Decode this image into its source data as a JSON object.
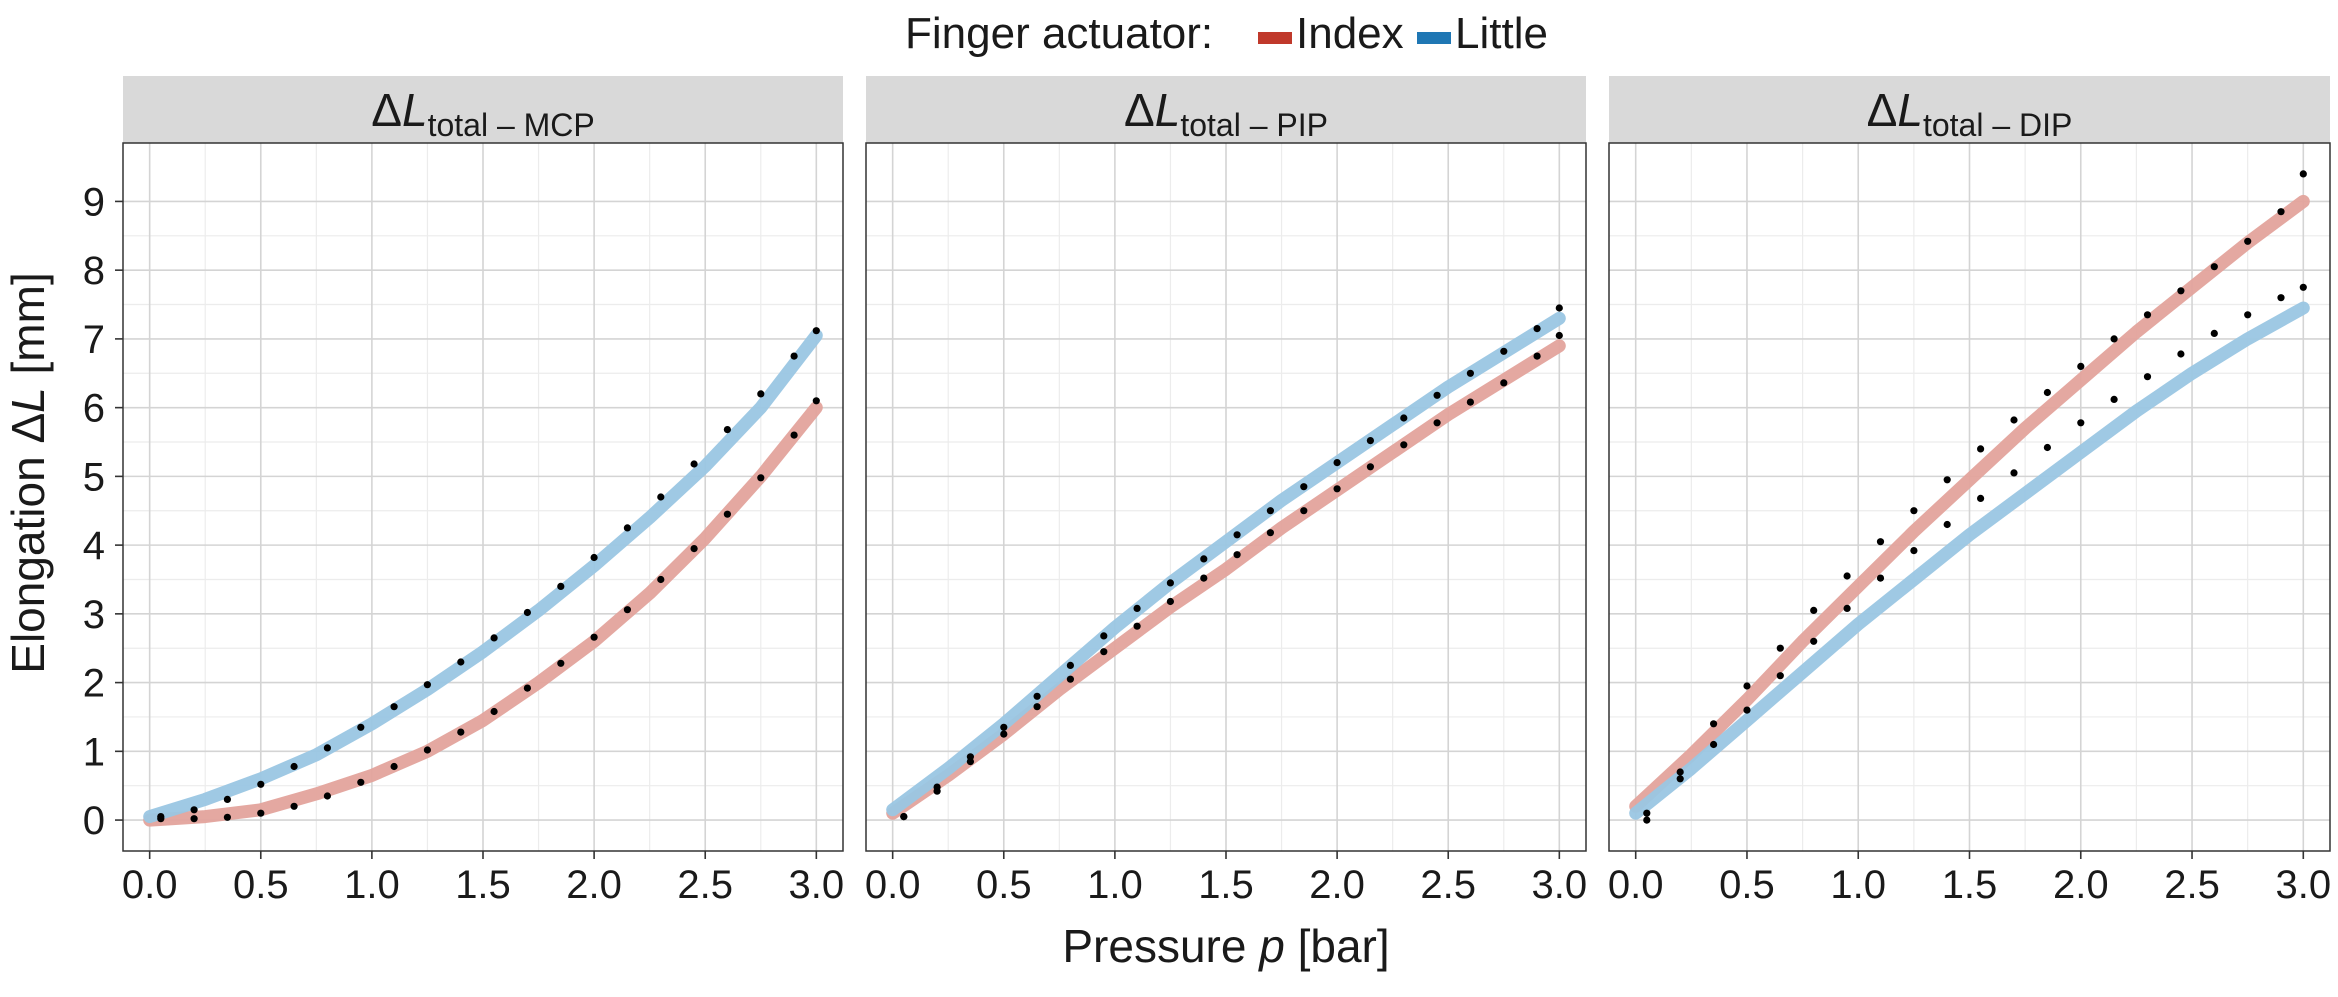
{
  "chart_data": {
    "type": "line",
    "legend": {
      "title": "Finger actuator:",
      "placement": "top",
      "entries": [
        {
          "name": "Index",
          "color": "#c0392b"
        },
        {
          "name": "Little",
          "color": "#1f77b4"
        }
      ]
    },
    "xlabel": {
      "pre": "Pressure ",
      "var": "p",
      "post": " [bar]"
    },
    "ylabel": {
      "pre": "Elongation Δ",
      "var": "L",
      "post": " [mm]"
    },
    "xlim": [
      -0.12,
      3.12
    ],
    "ylim": [
      -0.45,
      9.85
    ],
    "x_ticks": [
      "0.0",
      "0.5",
      "1.0",
      "1.5",
      "2.0",
      "2.5",
      "3.0"
    ],
    "x_tick_values": [
      0,
      0.5,
      1,
      1.5,
      2,
      2.5,
      3
    ],
    "y_ticks": [
      "0",
      "1",
      "2",
      "3",
      "4",
      "5",
      "6",
      "7",
      "8",
      "9"
    ],
    "y_tick_values": [
      0,
      1,
      2,
      3,
      4,
      5,
      6,
      7,
      8,
      9
    ],
    "grid": true,
    "line_colors": {
      "Index": "#e3a39c",
      "Little": "#9ac6e3"
    },
    "marker_color": "#000000",
    "panels": [
      {
        "label": {
          "delta": "Δ",
          "var": "L",
          "sub": "total",
          "joint": " – MCP"
        },
        "series": [
          {
            "name": "Index",
            "fit_x": [
              0.0,
              0.25,
              0.5,
              0.75,
              1.0,
              1.25,
              1.5,
              1.75,
              2.0,
              2.25,
              2.5,
              2.75,
              3.0
            ],
            "fit_y": [
              0.0,
              0.05,
              0.15,
              0.38,
              0.65,
              1.0,
              1.45,
              2.0,
              2.6,
              3.3,
              4.1,
              5.0,
              6.0
            ],
            "points_x": [
              0.05,
              0.2,
              0.35,
              0.5,
              0.65,
              0.8,
              0.95,
              1.1,
              1.25,
              1.4,
              1.55,
              1.7,
              1.85,
              2.0,
              2.15,
              2.3,
              2.45,
              2.6,
              2.75,
              2.9,
              3.0
            ],
            "points_y": [
              0.02,
              0.02,
              0.04,
              0.1,
              0.2,
              0.35,
              0.55,
              0.78,
              1.02,
              1.28,
              1.58,
              1.92,
              2.28,
              2.66,
              3.06,
              3.5,
              3.95,
              4.45,
              4.98,
              5.6,
              6.1
            ]
          },
          {
            "name": "Little",
            "fit_x": [
              0.0,
              0.25,
              0.5,
              0.75,
              1.0,
              1.25,
              1.5,
              1.75,
              2.0,
              2.25,
              2.5,
              2.75,
              3.0
            ],
            "fit_y": [
              0.05,
              0.3,
              0.6,
              0.95,
              1.4,
              1.9,
              2.45,
              3.05,
              3.7,
              4.4,
              5.15,
              6.0,
              7.05
            ],
            "points_x": [
              0.05,
              0.2,
              0.35,
              0.5,
              0.65,
              0.8,
              0.95,
              1.1,
              1.25,
              1.4,
              1.55,
              1.7,
              1.85,
              2.0,
              2.15,
              2.3,
              2.45,
              2.6,
              2.75,
              2.9,
              3.0
            ],
            "points_y": [
              0.05,
              0.15,
              0.3,
              0.52,
              0.78,
              1.05,
              1.35,
              1.65,
              1.97,
              2.3,
              2.65,
              3.02,
              3.4,
              3.82,
              4.25,
              4.7,
              5.18,
              5.68,
              6.2,
              6.75,
              7.12
            ]
          }
        ]
      },
      {
        "label": {
          "delta": "Δ",
          "var": "L",
          "sub": "total",
          "joint": " – PIP"
        },
        "series": [
          {
            "name": "Index",
            "fit_x": [
              0.0,
              0.25,
              0.5,
              0.75,
              1.0,
              1.25,
              1.5,
              1.75,
              2.0,
              2.25,
              2.5,
              2.75,
              3.0
            ],
            "fit_y": [
              0.1,
              0.65,
              1.25,
              1.9,
              2.5,
              3.1,
              3.65,
              4.25,
              4.8,
              5.35,
              5.9,
              6.4,
              6.9
            ],
            "points_x": [
              0.05,
              0.2,
              0.35,
              0.5,
              0.65,
              0.8,
              0.95,
              1.1,
              1.25,
              1.4,
              1.55,
              1.7,
              1.85,
              2.0,
              2.15,
              2.3,
              2.45,
              2.6,
              2.75,
              2.9,
              3.0
            ],
            "points_y": [
              0.05,
              0.42,
              0.85,
              1.25,
              1.65,
              2.05,
              2.45,
              2.82,
              3.18,
              3.52,
              3.86,
              4.18,
              4.5,
              4.82,
              5.14,
              5.46,
              5.78,
              6.08,
              6.36,
              6.75,
              7.05
            ]
          },
          {
            "name": "Little",
            "fit_x": [
              0.0,
              0.25,
              0.5,
              0.75,
              1.0,
              1.25,
              1.5,
              1.75,
              2.0,
              2.25,
              2.5,
              2.75,
              3.0
            ],
            "fit_y": [
              0.15,
              0.75,
              1.4,
              2.1,
              2.8,
              3.45,
              4.05,
              4.65,
              5.2,
              5.75,
              6.3,
              6.8,
              7.3
            ],
            "points_x": [
              0.05,
              0.2,
              0.35,
              0.5,
              0.65,
              0.8,
              0.95,
              1.1,
              1.25,
              1.4,
              1.55,
              1.7,
              1.85,
              2.0,
              2.15,
              2.3,
              2.45,
              2.6,
              2.75,
              2.9,
              3.0
            ],
            "points_y": [
              0.05,
              0.48,
              0.92,
              1.35,
              1.8,
              2.25,
              2.68,
              3.08,
              3.45,
              3.8,
              4.15,
              4.5,
              4.85,
              5.2,
              5.52,
              5.85,
              6.18,
              6.5,
              6.82,
              7.15,
              7.45
            ]
          }
        ]
      },
      {
        "label": {
          "delta": "Δ",
          "var": "L",
          "sub": "total",
          "joint": " – DIP"
        },
        "series": [
          {
            "name": "Index",
            "fit_x": [
              0.0,
              0.25,
              0.5,
              0.75,
              1.0,
              1.25,
              1.5,
              1.75,
              2.0,
              2.25,
              2.5,
              2.75,
              3.0
            ],
            "fit_y": [
              0.2,
              0.95,
              1.75,
              2.6,
              3.4,
              4.2,
              4.95,
              5.7,
              6.4,
              7.1,
              7.75,
              8.4,
              9.0
            ],
            "points_x": [
              0.05,
              0.2,
              0.35,
              0.5,
              0.65,
              0.8,
              0.95,
              1.1,
              1.25,
              1.4,
              1.55,
              1.7,
              1.85,
              2.0,
              2.15,
              2.3,
              2.45,
              2.6,
              2.75,
              2.9,
              3.0
            ],
            "points_y": [
              0.0,
              0.7,
              1.4,
              1.95,
              2.5,
              3.05,
              3.55,
              4.05,
              4.5,
              4.95,
              5.4,
              5.82,
              6.22,
              6.6,
              7.0,
              7.35,
              7.7,
              8.05,
              8.42,
              8.85,
              9.4
            ]
          },
          {
            "name": "Little",
            "fit_x": [
              0.0,
              0.25,
              0.5,
              0.75,
              1.0,
              1.25,
              1.5,
              1.75,
              2.0,
              2.25,
              2.5,
              2.75,
              3.0
            ],
            "fit_y": [
              0.1,
              0.75,
              1.45,
              2.15,
              2.85,
              3.5,
              4.15,
              4.75,
              5.35,
              5.95,
              6.5,
              7.0,
              7.45
            ],
            "points_x": [
              0.05,
              0.2,
              0.35,
              0.5,
              0.65,
              0.8,
              0.95,
              1.1,
              1.25,
              1.4,
              1.55,
              1.7,
              1.85,
              2.0,
              2.15,
              2.3,
              2.45,
              2.6,
              2.75,
              2.9,
              3.0
            ],
            "points_y": [
              0.1,
              0.6,
              1.1,
              1.6,
              2.1,
              2.6,
              3.08,
              3.52,
              3.92,
              4.3,
              4.68,
              5.05,
              5.42,
              5.78,
              6.12,
              6.45,
              6.78,
              7.08,
              7.35,
              7.6,
              7.75
            ]
          }
        ]
      }
    ]
  }
}
